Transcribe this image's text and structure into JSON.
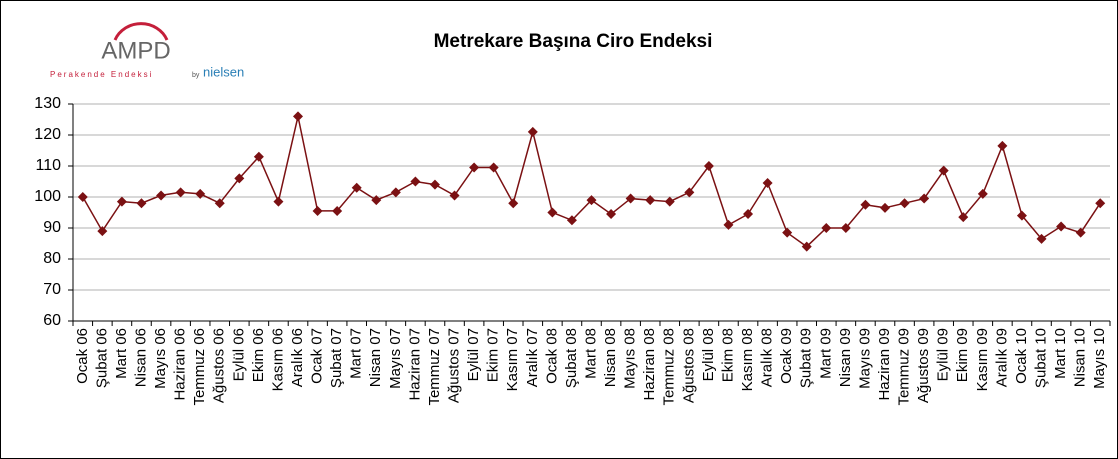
{
  "logo": {
    "name": "AMPD",
    "tagline": "Perakende Endeksi",
    "by": "by",
    "brand": "nielsen"
  },
  "chart_data": {
    "type": "line",
    "title": "Metrekare Başına Ciro Endeksi",
    "categories": [
      "Ocak 06",
      "Şubat 06",
      "Mart 06",
      "Nisan 06",
      "Mayıs 06",
      "Haziran 06",
      "Temmuz 06",
      "Ağustos 06",
      "Eylül 06",
      "Ekim 06",
      "Kasım 06",
      "Aralık 06",
      "Ocak 07",
      "Şubat 07",
      "Mart 07",
      "Nisan 07",
      "Mayıs 07",
      "Haziran 07",
      "Temmuz 07",
      "Ağustos 07",
      "Eylül 07",
      "Ekim 07",
      "Kasım 07",
      "Aralık 07",
      "Ocak 08",
      "Şubat 08",
      "Mart 08",
      "Nisan 08",
      "Mayıs 08",
      "Haziran 08",
      "Temmuz 08",
      "Ağustos 08",
      "Eylül 08",
      "Ekim 08",
      "Kasım 08",
      "Aralık 08",
      "Ocak 09",
      "Şubat 09",
      "Mart 09",
      "Nisan 09",
      "Mayıs 09",
      "Haziran 09",
      "Temmuz 09",
      "Ağustos 09",
      "Eylül 09",
      "Ekim 09",
      "Kasım 09",
      "Aralık 09",
      "Ocak 10",
      "Şubat 10",
      "Mart 10",
      "Nisan 10",
      "Mayıs 10"
    ],
    "values": [
      100,
      89,
      98.5,
      98,
      100.5,
      101.5,
      101,
      98,
      106,
      113,
      98.5,
      126,
      95.5,
      95.5,
      103,
      99,
      101.5,
      105,
      104,
      100.5,
      109.5,
      109.5,
      98,
      121,
      95,
      92.5,
      99,
      94.5,
      99.5,
      99,
      98.5,
      101.5,
      110,
      91,
      94.5,
      104.5,
      88.5,
      84,
      90,
      90,
      97.5,
      96.5,
      98,
      99.5,
      108.5,
      93.5,
      101,
      116.5,
      94,
      86.5,
      90.5,
      88.5,
      98
    ],
    "color": "#7b1113",
    "ylim": [
      60,
      130
    ],
    "yticks": [
      60,
      70,
      80,
      90,
      100,
      110,
      120,
      130
    ],
    "grid": true
  }
}
